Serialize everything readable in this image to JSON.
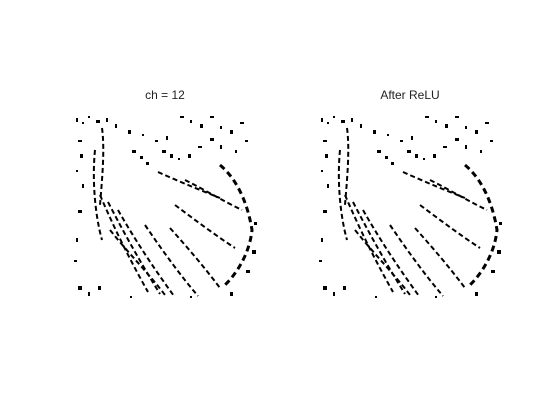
{
  "figure": {
    "panels": [
      {
        "title": "ch = 12",
        "content": "binary feature map of butterfly wing veins (black strokes on white)"
      },
      {
        "title": "After ReLU",
        "content": "binary feature map of butterfly wing veins (black strokes on white)"
      }
    ],
    "colors": {
      "background": "#ffffff",
      "ink": "#000000",
      "title_text": "#222222"
    }
  }
}
